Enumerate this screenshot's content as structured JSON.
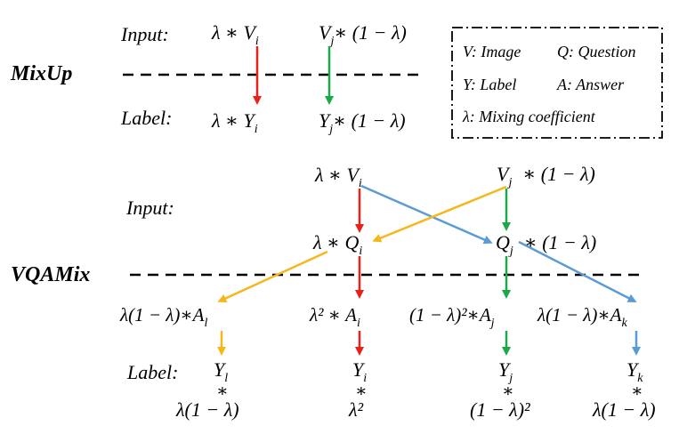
{
  "mixup": {
    "title": "MixUp",
    "input_label": "Input:",
    "label_label": "Label:",
    "input_left": "λ ∗ V",
    "input_left_sub": "i",
    "input_right": "V",
    "input_right_sub": "j",
    "input_right_tail": "∗ (1 − λ)",
    "label_left": "λ ∗ Y",
    "label_left_sub": "i",
    "label_right": "Y",
    "label_right_sub": "j",
    "label_right_tail": "∗ (1 − λ)"
  },
  "legend": {
    "image": "V: Image",
    "question": "Q: Question",
    "label": "Y: Label",
    "answer": "A: Answer",
    "mixing": "λ: Mixing coefficient"
  },
  "vqamix": {
    "title": "VQAMix",
    "input_label": "Input:",
    "label_label": "Label:",
    "v_left": "λ ∗ V",
    "v_left_sub": "i",
    "v_right": "V",
    "v_right_sub": "j",
    "v_right_tail": "∗ (1 − λ)",
    "q_left": "λ ∗ Q",
    "q_left_sub": "i",
    "q_right": "Q",
    "q_right_sub": "j",
    "q_right_tail": "∗ (1 − λ)",
    "a1": "λ(1 − λ)∗A",
    "a1_sub": "l",
    "a2": "λ² ∗ A",
    "a2_sub": "i",
    "a3": "(1 − λ)²∗A",
    "a3_sub": "j",
    "a4": "λ(1 − λ)∗A",
    "a4_sub": "k",
    "y1": "Y",
    "y1_sub": "l",
    "w1": "λ(1 − λ)",
    "y2": "Y",
    "y2_sub": "i",
    "w2": "λ²",
    "y3": "Y",
    "y3_sub": "j",
    "w3": "(1 − λ)²",
    "y4": "Y",
    "y4_sub": "k",
    "w4": "λ(1 − λ)",
    "star": "∗"
  },
  "colors": {
    "red": "#e8211a",
    "green": "#1aa84a",
    "yellow": "#f5b81a",
    "blue": "#5b9bd5",
    "black": "#000000"
  }
}
